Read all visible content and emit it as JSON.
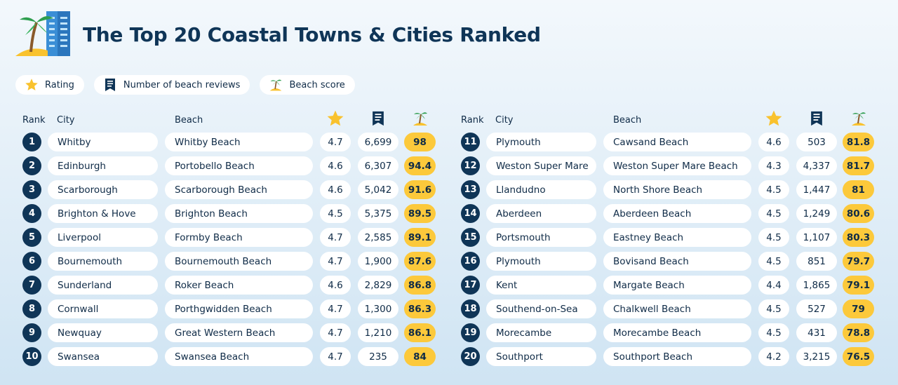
{
  "title": "The Top 20 Coastal Towns & Cities Ranked",
  "legend": {
    "rating_label": "Rating",
    "reviews_label": "Number of beach reviews",
    "score_label": "Beach score"
  },
  "columns": {
    "rank": "Rank",
    "city": "City",
    "beach": "Beach"
  },
  "icons": {
    "rating": "star-icon",
    "reviews": "document-icon",
    "score": "palm-island-icon"
  },
  "colors": {
    "navy": "#0f3557",
    "score_bg": "#fcc93b",
    "star": "#f9c22e"
  },
  "rows": [
    {
      "rank": "1",
      "city": "Whitby",
      "beach": "Whitby Beach",
      "rating": "4.7",
      "reviews": "6,699",
      "score": "98"
    },
    {
      "rank": "2",
      "city": "Edinburgh",
      "beach": "Portobello Beach",
      "rating": "4.6",
      "reviews": "6,307",
      "score": "94.4"
    },
    {
      "rank": "3",
      "city": "Scarborough",
      "beach": "Scarborough Beach",
      "rating": "4.6",
      "reviews": "5,042",
      "score": "91.6"
    },
    {
      "rank": "4",
      "city": "Brighton & Hove",
      "beach": "Brighton Beach",
      "rating": "4.5",
      "reviews": "5,375",
      "score": "89.5"
    },
    {
      "rank": "5",
      "city": "Liverpool",
      "beach": "Formby Beach",
      "rating": "4.7",
      "reviews": "2,585",
      "score": "89.1"
    },
    {
      "rank": "6",
      "city": "Bournemouth",
      "beach": "Bournemouth Beach",
      "rating": "4.7",
      "reviews": "1,900",
      "score": "87.6"
    },
    {
      "rank": "7",
      "city": "Sunderland",
      "beach": "Roker Beach",
      "rating": "4.6",
      "reviews": "2,829",
      "score": "86.8"
    },
    {
      "rank": "8",
      "city": "Cornwall",
      "beach": "Porthgwidden Beach",
      "rating": "4.7",
      "reviews": "1,300",
      "score": "86.3"
    },
    {
      "rank": "9",
      "city": "Newquay",
      "beach": "Great Western Beach",
      "rating": "4.7",
      "reviews": "1,210",
      "score": "86.1"
    },
    {
      "rank": "10",
      "city": "Swansea",
      "beach": "Swansea Beach",
      "rating": "4.7",
      "reviews": "235",
      "score": "84"
    },
    {
      "rank": "11",
      "city": "Plymouth",
      "beach": "Cawsand Beach",
      "rating": "4.6",
      "reviews": "503",
      "score": "81.8"
    },
    {
      "rank": "12",
      "city": "Weston Super Mare",
      "beach": "Weston Super Mare Beach",
      "rating": "4.3",
      "reviews": "4,337",
      "score": "81.7"
    },
    {
      "rank": "13",
      "city": "Llandudno",
      "beach": "North Shore Beach",
      "rating": "4.5",
      "reviews": "1,447",
      "score": "81"
    },
    {
      "rank": "14",
      "city": "Aberdeen",
      "beach": "Aberdeen Beach",
      "rating": "4.5",
      "reviews": "1,249",
      "score": "80.6"
    },
    {
      "rank": "15",
      "city": "Portsmouth",
      "beach": "Eastney Beach",
      "rating": "4.5",
      "reviews": "1,107",
      "score": "80.3"
    },
    {
      "rank": "16",
      "city": "Plymouth",
      "beach": "Bovisand Beach",
      "rating": "4.5",
      "reviews": "851",
      "score": "79.7"
    },
    {
      "rank": "17",
      "city": "Kent",
      "beach": "Margate Beach",
      "rating": "4.4",
      "reviews": "1,865",
      "score": "79.1"
    },
    {
      "rank": "18",
      "city": "Southend-on-Sea",
      "beach": "Chalkwell Beach",
      "rating": "4.5",
      "reviews": "527",
      "score": "79"
    },
    {
      "rank": "19",
      "city": "Morecambe",
      "beach": "Morecambe Beach",
      "rating": "4.5",
      "reviews": "431",
      "score": "78.8"
    },
    {
      "rank": "20",
      "city": "Southport",
      "beach": "Southport Beach",
      "rating": "4.2",
      "reviews": "3,215",
      "score": "76.5"
    }
  ]
}
